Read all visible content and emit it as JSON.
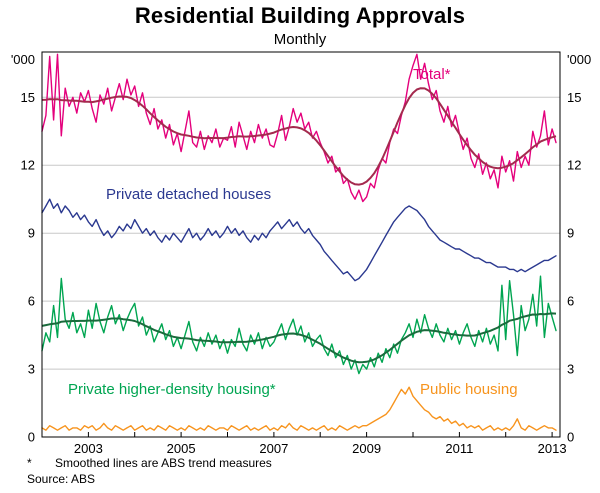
{
  "title": "Residential Building Approvals",
  "subtitle": "Monthly",
  "footnote": {
    "marker": "*",
    "text": "Smoothed lines are ABS trend measures"
  },
  "source": "Source: ABS",
  "chart_data": {
    "type": "line",
    "title": "Residential Building Approvals",
    "subtitle": "Monthly",
    "x_start": 2002.0,
    "x_step": "monthly",
    "axis": {
      "x_start": 2002.0,
      "x_end": 2013.17,
      "ylim": [
        0,
        17
      ],
      "y_ticks": [
        0,
        3,
        6,
        9,
        12,
        15
      ],
      "x_tick_years": [
        2003,
        2005,
        2007,
        2009,
        2011,
        2013
      ],
      "unit": "'000",
      "grid": true
    },
    "colors": {
      "grid": "#C8C8C8",
      "frame": "#000000"
    },
    "series": [
      {
        "key": "total",
        "name": "Total*",
        "color": "#E4007C",
        "smoothed_trend": true,
        "trend_color": "#A42A4E",
        "values": [
          13.5,
          14.2,
          16.8,
          14.0,
          16.9,
          13.3,
          15.4,
          14.6,
          15.0,
          14.3,
          15.2,
          14.8,
          15.3,
          14.5,
          13.9,
          15.1,
          14.7,
          15.4,
          14.4,
          15.0,
          15.6,
          14.9,
          15.8,
          15.1,
          15.5,
          14.6,
          15.2,
          14.3,
          13.8,
          14.5,
          13.6,
          14.0,
          13.2,
          13.8,
          12.9,
          13.4,
          12.6,
          13.5,
          14.4,
          13.0,
          12.8,
          13.5,
          12.7,
          13.3,
          13.0,
          13.6,
          12.8,
          13.2,
          13.1,
          13.7,
          12.8,
          13.9,
          13.3,
          12.7,
          13.5,
          13.0,
          13.8,
          13.2,
          13.6,
          12.9,
          12.8,
          13.4,
          14.2,
          13.1,
          13.7,
          14.5,
          13.9,
          14.3,
          13.6,
          13.9,
          13.2,
          13.5,
          13.0,
          12.6,
          12.1,
          12.4,
          11.7,
          11.9,
          11.2,
          11.4,
          10.8,
          10.5,
          10.9,
          10.4,
          10.6,
          11.2,
          11.0,
          11.8,
          12.3,
          12.1,
          13.0,
          13.6,
          13.4,
          14.2,
          14.8,
          15.8,
          16.4,
          16.9,
          15.8,
          16.5,
          15.6,
          14.9,
          15.3,
          14.4,
          13.9,
          14.6,
          13.7,
          14.2,
          13.4,
          12.7,
          13.2,
          12.3,
          11.9,
          12.5,
          11.6,
          12.1,
          11.4,
          11.8,
          11.0,
          12.4,
          11.7,
          12.2,
          11.3,
          12.6,
          11.9,
          12.4,
          12.0,
          13.5,
          12.8,
          13.3,
          14.4,
          12.9,
          13.6,
          13.0
        ]
      },
      {
        "key": "detached",
        "name": "Private detached houses",
        "color": "#2B3990",
        "smoothed_trend": false,
        "values": [
          9.9,
          10.2,
          10.5,
          10.1,
          10.3,
          9.9,
          10.2,
          10.0,
          9.7,
          9.9,
          9.6,
          9.8,
          9.5,
          9.3,
          9.6,
          9.2,
          8.9,
          9.1,
          8.8,
          9.0,
          9.3,
          9.1,
          9.4,
          9.2,
          9.6,
          9.3,
          9.0,
          9.2,
          8.9,
          9.1,
          8.8,
          8.6,
          8.9,
          8.7,
          9.0,
          8.8,
          8.6,
          8.9,
          9.2,
          8.8,
          9.0,
          8.7,
          8.9,
          9.2,
          8.9,
          9.1,
          8.8,
          9.0,
          9.3,
          9.0,
          9.2,
          8.9,
          9.1,
          8.8,
          8.6,
          8.9,
          8.7,
          9.0,
          8.8,
          9.1,
          9.3,
          9.5,
          9.2,
          9.4,
          9.6,
          9.3,
          9.5,
          9.2,
          9.0,
          9.2,
          8.9,
          8.7,
          8.5,
          8.2,
          8.0,
          7.8,
          7.6,
          7.4,
          7.2,
          7.3,
          7.1,
          6.9,
          7.0,
          7.2,
          7.4,
          7.7,
          8.0,
          8.3,
          8.6,
          8.9,
          9.2,
          9.5,
          9.7,
          9.9,
          10.1,
          10.2,
          10.1,
          10.0,
          9.8,
          9.6,
          9.3,
          9.1,
          8.9,
          8.7,
          8.6,
          8.5,
          8.4,
          8.3,
          8.3,
          8.2,
          8.1,
          8.0,
          7.9,
          7.9,
          7.8,
          7.7,
          7.7,
          7.6,
          7.5,
          7.5,
          7.5,
          7.4,
          7.4,
          7.3,
          7.4,
          7.3,
          7.4,
          7.5,
          7.6,
          7.7,
          7.8,
          7.8,
          7.9,
          8.0
        ]
      },
      {
        "key": "higher_density",
        "name": "Private higher-density housing*",
        "color": "#00A551",
        "smoothed_trend": true,
        "trend_color": "#1A6B3C",
        "values": [
          3.8,
          4.6,
          4.2,
          5.8,
          4.4,
          7.0,
          5.2,
          4.8,
          5.5,
          4.6,
          5.0,
          4.4,
          5.6,
          4.8,
          5.9,
          5.1,
          4.6,
          5.3,
          5.8,
          5.0,
          5.4,
          4.7,
          5.2,
          5.6,
          5.9,
          4.9,
          5.3,
          4.5,
          4.9,
          4.2,
          4.6,
          5.0,
          4.3,
          4.7,
          4.0,
          4.4,
          3.9,
          4.5,
          5.1,
          4.2,
          3.8,
          4.4,
          4.0,
          4.6,
          4.1,
          4.5,
          3.9,
          4.3,
          3.7,
          4.3,
          4.0,
          4.8,
          4.1,
          3.8,
          4.5,
          4.1,
          4.6,
          3.9,
          4.4,
          4.0,
          4.2,
          4.6,
          5.0,
          4.3,
          4.8,
          5.2,
          4.5,
          4.9,
          4.2,
          4.6,
          4.0,
          4.3,
          4.5,
          3.9,
          3.6,
          4.1,
          3.5,
          3.8,
          3.2,
          3.6,
          3.0,
          3.4,
          2.8,
          3.2,
          3.0,
          3.5,
          3.1,
          3.7,
          3.3,
          3.9,
          3.5,
          4.1,
          3.7,
          4.3,
          4.6,
          5.0,
          4.4,
          5.2,
          4.6,
          5.4,
          4.8,
          4.4,
          5.0,
          4.5,
          4.2,
          4.8,
          4.3,
          4.7,
          4.1,
          4.6,
          5.0,
          4.4,
          4.0,
          4.7,
          4.2,
          4.8,
          4.1,
          4.5,
          3.8,
          6.7,
          4.3,
          6.9,
          5.4,
          3.6,
          5.8,
          4.7,
          5.2,
          6.3,
          4.9,
          7.1,
          4.4,
          5.9,
          5.3,
          4.7
        ]
      },
      {
        "key": "public",
        "name": "Public housing",
        "color": "#F7941E",
        "smoothed_trend": false,
        "values": [
          0.4,
          0.3,
          0.5,
          0.4,
          0.3,
          0.4,
          0.5,
          0.3,
          0.4,
          0.4,
          0.3,
          0.5,
          0.4,
          0.5,
          0.3,
          0.4,
          0.6,
          0.4,
          0.3,
          0.5,
          0.4,
          0.3,
          0.4,
          0.5,
          0.3,
          0.4,
          0.5,
          0.3,
          0.4,
          0.3,
          0.5,
          0.4,
          0.3,
          0.5,
          0.4,
          0.3,
          0.4,
          0.3,
          0.5,
          0.4,
          0.3,
          0.4,
          0.3,
          0.5,
          0.4,
          0.3,
          0.4,
          0.4,
          0.3,
          0.5,
          0.4,
          0.3,
          0.4,
          0.5,
          0.3,
          0.4,
          0.3,
          0.4,
          0.5,
          0.3,
          0.4,
          0.3,
          0.5,
          0.4,
          0.6,
          0.4,
          0.3,
          0.5,
          0.4,
          0.3,
          0.4,
          0.3,
          0.4,
          0.5,
          0.3,
          0.4,
          0.3,
          0.5,
          0.4,
          0.3,
          0.4,
          0.5,
          0.4,
          0.5,
          0.5,
          0.6,
          0.7,
          0.8,
          0.9,
          1.0,
          1.2,
          1.5,
          1.8,
          2.1,
          1.9,
          2.2,
          1.8,
          1.6,
          1.4,
          1.2,
          1.1,
          0.9,
          0.8,
          0.9,
          0.7,
          0.8,
          0.6,
          0.7,
          0.5,
          0.6,
          0.4,
          0.5,
          0.4,
          0.5,
          0.3,
          0.4,
          0.5,
          0.3,
          0.4,
          0.3,
          0.4,
          0.3,
          0.5,
          0.8,
          0.4,
          0.3,
          0.5,
          0.4,
          0.3,
          0.4,
          0.5,
          0.4,
          0.4,
          0.3
        ]
      }
    ]
  }
}
